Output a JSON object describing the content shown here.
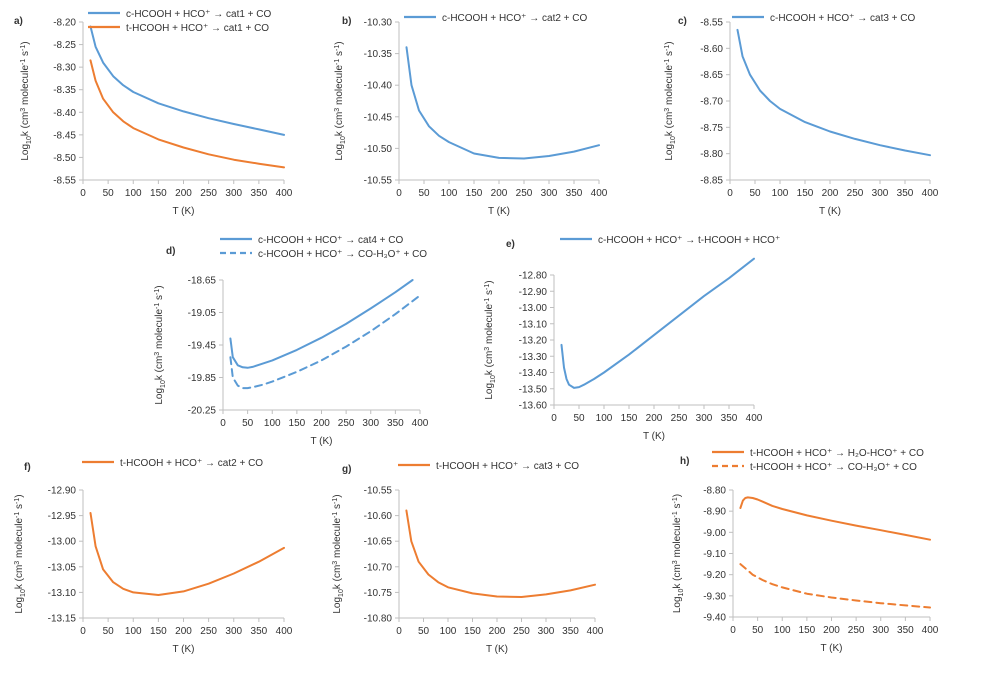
{
  "chart_data": [
    {
      "panel": "a)",
      "type": "line",
      "xlabel": "T (K)",
      "ylabel": "Log10k (cm3 molecule-1 s-1)",
      "ylabel_parts": {
        "pre": "Log",
        "sub": "10",
        "mid": "k (cm",
        "sup1": "3",
        "mid2": " molecule",
        "sup2": "-1",
        "mid3": " s",
        "sup3": "-1",
        "post": ")"
      },
      "xticks": [
        0,
        50,
        100,
        150,
        200,
        250,
        300,
        350,
        400
      ],
      "xtick_labels": [
        "0",
        "50",
        "100",
        "150",
        "200",
        "250",
        "300",
        "350",
        "400"
      ],
      "xlim": [
        0,
        400
      ],
      "yticks": [
        -8.2,
        -8.25,
        -8.3,
        -8.35,
        -8.4,
        -8.45,
        -8.5,
        -8.55
      ],
      "ytick_labels": [
        "-8.20",
        "-8.25",
        "-8.30",
        "-8.35",
        "-8.40",
        "-8.45",
        "-8.50",
        "-8.55"
      ],
      "ylim": [
        -8.55,
        -8.2
      ],
      "series": [
        {
          "name": "c-HCOOH + HCO⁺ → cat1 + CO",
          "color": "#5b9bd5",
          "dash": "solid",
          "x": [
            15,
            25,
            40,
            60,
            80,
            100,
            150,
            200,
            250,
            300,
            350,
            400
          ],
          "y": [
            -8.21,
            -8.255,
            -8.29,
            -8.32,
            -8.34,
            -8.355,
            -8.38,
            -8.398,
            -8.413,
            -8.426,
            -8.438,
            -8.45
          ]
        },
        {
          "name": "t-HCOOH + HCO⁺ → cat1 + CO",
          "color": "#ed7d31",
          "dash": "solid",
          "x": [
            15,
            25,
            40,
            60,
            80,
            100,
            150,
            200,
            250,
            300,
            350,
            400
          ],
          "y": [
            -8.285,
            -8.33,
            -8.37,
            -8.4,
            -8.42,
            -8.435,
            -8.46,
            -8.478,
            -8.493,
            -8.505,
            -8.514,
            -8.522
          ]
        }
      ]
    },
    {
      "panel": "b)",
      "type": "line",
      "xlabel": "T (K)",
      "ylabel": "Log10k (cm3 molecule-1 s-1)",
      "ylabel_parts": {
        "pre": "Log",
        "sub": "10",
        "mid": "k (cm",
        "sup1": "3",
        "mid2": " molecule",
        "sup2": "-1",
        "mid3": " s",
        "sup3": "-1",
        "post": ")"
      },
      "xticks": [
        0,
        50,
        100,
        150,
        200,
        250,
        300,
        350,
        400
      ],
      "xtick_labels": [
        "0",
        "50",
        "100",
        "150",
        "200",
        "250",
        "300",
        "350",
        "400"
      ],
      "xlim": [
        0,
        400
      ],
      "yticks": [
        -10.3,
        -10.35,
        -10.4,
        -10.45,
        -10.5,
        -10.55
      ],
      "ytick_labels": [
        "-10.30",
        "-10.35",
        "-10.40",
        "-10.45",
        "-10.50",
        "-10.55"
      ],
      "ylim": [
        -10.55,
        -10.3
      ],
      "series": [
        {
          "name": "c-HCOOH + HCO⁺ → cat2 + CO",
          "color": "#5b9bd5",
          "dash": "solid",
          "x": [
            15,
            25,
            40,
            60,
            80,
            100,
            150,
            200,
            250,
            300,
            350,
            400
          ],
          "y": [
            -10.34,
            -10.4,
            -10.44,
            -10.465,
            -10.48,
            -10.49,
            -10.508,
            -10.515,
            -10.516,
            -10.512,
            -10.505,
            -10.495
          ]
        }
      ]
    },
    {
      "panel": "c)",
      "type": "line",
      "xlabel": "T (K)",
      "ylabel": "Log10k (cm3 molecule-1 s-1)",
      "ylabel_parts": {
        "pre": "Log",
        "sub": "10",
        "mid": "k (cm",
        "sup1": "3",
        "mid2": " molecule",
        "sup2": "-1",
        "mid3": " s",
        "sup3": "-1",
        "post": ")"
      },
      "xticks": [
        0,
        50,
        100,
        150,
        200,
        250,
        300,
        350,
        400
      ],
      "xtick_labels": [
        "0",
        "50",
        "100",
        "150",
        "200",
        "250",
        "300",
        "350",
        "400"
      ],
      "xlim": [
        0,
        400
      ],
      "yticks": [
        -8.55,
        -8.6,
        -8.65,
        -8.7,
        -8.75,
        -8.8,
        -8.85
      ],
      "ytick_labels": [
        "-8.55",
        "-8.60",
        "-8.65",
        "-8.70",
        "-8.75",
        "-8.80",
        "-8.85"
      ],
      "ylim": [
        -8.85,
        -8.55
      ],
      "series": [
        {
          "name": "c-HCOOH + HCO⁺ → cat3 + CO",
          "color": "#5b9bd5",
          "dash": "solid",
          "x": [
            15,
            25,
            40,
            60,
            80,
            100,
            150,
            200,
            250,
            300,
            350,
            400
          ],
          "y": [
            -8.565,
            -8.615,
            -8.65,
            -8.68,
            -8.7,
            -8.715,
            -8.74,
            -8.758,
            -8.772,
            -8.784,
            -8.794,
            -8.803
          ]
        }
      ]
    },
    {
      "panel": "d)",
      "type": "line",
      "xlabel": "T (K)",
      "ylabel": "Log10k (cm3 molecule-1 s-1)",
      "ylabel_parts": {
        "pre": "Log",
        "sub": "10",
        "mid": "k (cm",
        "sup1": "3",
        "mid2": " molecule",
        "sup2": "-1",
        "mid3": " s",
        "sup3": "-1",
        "post": ")"
      },
      "xticks": [
        0,
        50,
        100,
        150,
        200,
        250,
        300,
        350,
        400
      ],
      "xtick_labels": [
        "0",
        "50",
        "100",
        "150",
        "200",
        "250",
        "300",
        "350",
        "400"
      ],
      "xlim": [
        0,
        400
      ],
      "yticks": [
        -18.65,
        -19.05,
        -19.45,
        -19.85,
        -20.25
      ],
      "ytick_labels": [
        "-18.65",
        "-19.05",
        "-19.45",
        "-19.85",
        "-20.25"
      ],
      "ylim": [
        -20.25,
        -18.65
      ],
      "series": [
        {
          "name": "c-HCOOH + HCO⁺ → cat4 + CO",
          "color": "#5b9bd5",
          "dash": "solid",
          "x": [
            15,
            20,
            30,
            40,
            50,
            60,
            80,
            100,
            150,
            200,
            250,
            300,
            350,
            385
          ],
          "y": [
            -19.37,
            -19.6,
            -19.7,
            -19.725,
            -19.73,
            -19.72,
            -19.68,
            -19.64,
            -19.51,
            -19.36,
            -19.19,
            -19.0,
            -18.8,
            -18.65
          ]
        },
        {
          "name": "c-HCOOH + HCO⁺ → CO-H₃O⁺ + CO",
          "color": "#5b9bd5",
          "dash": "dashed",
          "x": [
            15,
            20,
            30,
            40,
            50,
            60,
            80,
            100,
            150,
            200,
            250,
            300,
            350,
            400
          ],
          "y": [
            -19.6,
            -19.85,
            -19.95,
            -19.98,
            -19.98,
            -19.97,
            -19.94,
            -19.9,
            -19.78,
            -19.64,
            -19.47,
            -19.28,
            -19.07,
            -18.84
          ]
        }
      ]
    },
    {
      "panel": "e)",
      "type": "line",
      "xlabel": "T (K)",
      "ylabel": "Log10k (cm3 molecule-1 s-1)",
      "ylabel_parts": {
        "pre": "Log",
        "sub": "10",
        "mid": "k (cm",
        "sup1": "3",
        "mid2": " molecule",
        "sup2": "-1",
        "mid3": " s",
        "sup3": "-1",
        "post": ")"
      },
      "xticks": [
        0,
        50,
        100,
        150,
        200,
        250,
        300,
        350,
        400
      ],
      "xtick_labels": [
        "0",
        "50",
        "100",
        "150",
        "200",
        "250",
        "300",
        "350",
        "400"
      ],
      "xlim": [
        0,
        400
      ],
      "yticks": [
        -12.8,
        -12.9,
        -13.0,
        -13.1,
        -13.2,
        -13.3,
        -13.4,
        -13.5,
        -13.6
      ],
      "ytick_labels": [
        "-12.80",
        "-12.90",
        "-13.00",
        "-13.10",
        "-13.20",
        "-13.30",
        "-13.40",
        "-13.50",
        "-13.60"
      ],
      "ylim": [
        -13.6,
        -12.8
      ],
      "series": [
        {
          "name": "c-HCOOH + HCO⁺ → t-HCOOH + HCO⁺",
          "color": "#5b9bd5",
          "dash": "solid",
          "x": [
            15,
            20,
            25,
            30,
            40,
            50,
            60,
            80,
            100,
            150,
            200,
            250,
            300,
            350,
            400
          ],
          "y": [
            -13.23,
            -13.37,
            -13.44,
            -13.475,
            -13.495,
            -13.49,
            -13.475,
            -13.44,
            -13.4,
            -13.29,
            -13.17,
            -13.05,
            -12.93,
            -12.82,
            -12.7
          ]
        }
      ]
    },
    {
      "panel": "f)",
      "type": "line",
      "xlabel": "T (K)",
      "ylabel": "Log10k (cm3 molecule-1 s-1)",
      "ylabel_parts": {
        "pre": "Log",
        "sub": "10",
        "mid": "k (cm",
        "sup1": "3",
        "mid2": " molecule",
        "sup2": "-1",
        "mid3": " s",
        "sup3": "-1",
        "post": ")"
      },
      "xticks": [
        0,
        50,
        100,
        150,
        200,
        250,
        300,
        350,
        400
      ],
      "xtick_labels": [
        "0",
        "50",
        "100",
        "150",
        "200",
        "250",
        "300",
        "350",
        "400"
      ],
      "xlim": [
        0,
        400
      ],
      "yticks": [
        -12.9,
        -12.95,
        -13.0,
        -13.05,
        -13.1,
        -13.15
      ],
      "ytick_labels": [
        "-12.90",
        "-12.95",
        "-13.00",
        "-13.05",
        "-13.10",
        "-13.15"
      ],
      "ylim": [
        -13.15,
        -12.9
      ],
      "series": [
        {
          "name": "t-HCOOH + HCO⁺ → cat2 + CO",
          "color": "#ed7d31",
          "dash": "solid",
          "x": [
            15,
            25,
            40,
            60,
            80,
            100,
            150,
            200,
            250,
            300,
            350,
            400
          ],
          "y": [
            -12.945,
            -13.01,
            -13.055,
            -13.08,
            -13.093,
            -13.1,
            -13.105,
            -13.098,
            -13.083,
            -13.063,
            -13.04,
            -13.013
          ]
        }
      ]
    },
    {
      "panel": "g)",
      "type": "line",
      "xlabel": "T (K)",
      "ylabel": "Log10k (cm3 molecule-1 s-1)",
      "ylabel_parts": {
        "pre": "Log",
        "sub": "10",
        "mid": "k (cm",
        "sup1": "3",
        "mid2": " molecule",
        "sup2": "-1",
        "mid3": " s",
        "sup3": "-1",
        "post": ")"
      },
      "xticks": [
        0,
        50,
        100,
        150,
        200,
        250,
        300,
        350,
        400
      ],
      "xtick_labels": [
        "0",
        "50",
        "100",
        "150",
        "200",
        "250",
        "300",
        "350",
        "400"
      ],
      "xlim": [
        0,
        400
      ],
      "yticks": [
        -10.55,
        -10.6,
        -10.65,
        -10.7,
        -10.75,
        -10.8
      ],
      "ytick_labels": [
        "-10.55",
        "-10.60",
        "-10.65",
        "-10.70",
        "-10.75",
        "-10.80"
      ],
      "ylim": [
        -10.8,
        -10.55
      ],
      "series": [
        {
          "name": "t-HCOOH + HCO⁺ → cat3 + CO",
          "color": "#ed7d31",
          "dash": "solid",
          "x": [
            15,
            25,
            40,
            60,
            80,
            100,
            150,
            200,
            250,
            300,
            350,
            400
          ],
          "y": [
            -10.59,
            -10.65,
            -10.69,
            -10.715,
            -10.73,
            -10.74,
            -10.752,
            -10.758,
            -10.759,
            -10.754,
            -10.746,
            -10.735
          ]
        }
      ]
    },
    {
      "panel": "h)",
      "type": "line",
      "xlabel": "T (K)",
      "ylabel": "Log10k (cm3 molecule-1 s-1)",
      "ylabel_parts": {
        "pre": "Log",
        "sub": "10",
        "mid": "k (cm",
        "sup1": "3",
        "mid2": " molecule",
        "sup2": "-1",
        "mid3": " s",
        "sup3": "-1",
        "post": ")"
      },
      "xticks": [
        0,
        50,
        100,
        150,
        200,
        250,
        300,
        350,
        400
      ],
      "xtick_labels": [
        "0",
        "50",
        "100",
        "150",
        "200",
        "250",
        "300",
        "350",
        "400"
      ],
      "xlim": [
        0,
        400
      ],
      "yticks": [
        -8.8,
        -8.9,
        -9.0,
        -9.1,
        -9.2,
        -9.3,
        -9.4
      ],
      "ytick_labels": [
        "-8.80",
        "-8.90",
        "-9.00",
        "-9.10",
        "-9.20",
        "-9.30",
        "-9.40"
      ],
      "ylim": [
        -9.4,
        -8.8
      ],
      "series": [
        {
          "name": "t-HCOOH + HCO⁺ → H₂O-HCO⁺ + CO",
          "color": "#ed7d31",
          "dash": "solid",
          "x": [
            15,
            20,
            25,
            30,
            40,
            50,
            60,
            80,
            100,
            150,
            200,
            250,
            300,
            350,
            400
          ],
          "y": [
            -8.885,
            -8.85,
            -8.838,
            -8.835,
            -8.838,
            -8.845,
            -8.855,
            -8.875,
            -8.89,
            -8.92,
            -8.945,
            -8.968,
            -8.99,
            -9.012,
            -9.035
          ]
        },
        {
          "name": "t-HCOOH + HCO⁺ → CO-H₃O⁺ + CO",
          "color": "#ed7d31",
          "dash": "dashed",
          "x": [
            15,
            25,
            40,
            60,
            80,
            100,
            150,
            200,
            250,
            300,
            350,
            400
          ],
          "y": [
            -9.15,
            -9.17,
            -9.2,
            -9.225,
            -9.245,
            -9.26,
            -9.29,
            -9.308,
            -9.322,
            -9.335,
            -9.345,
            -9.355
          ]
        }
      ]
    }
  ]
}
